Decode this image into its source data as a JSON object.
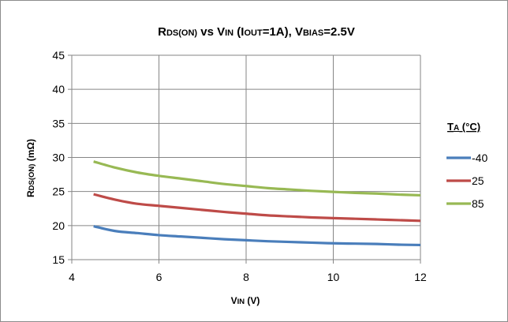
{
  "chart_data": {
    "type": "line",
    "title": {
      "main": "R",
      "sub": "DS(ON)",
      "mid": " vs V",
      "sub2": "IN",
      "open": " (I",
      "sub3": "OUT",
      "close": "=1A), V",
      "sub4": "BIAS",
      "end": "=2.5V"
    },
    "xlabel": {
      "main": "V",
      "sub": "IN",
      "end": " (V)"
    },
    "ylabel": {
      "main": "R",
      "sub": "DS(ON)",
      "end": " (mΩ)"
    },
    "xlim": [
      4,
      12
    ],
    "ylim": [
      15,
      45
    ],
    "x_ticks": [
      4,
      6,
      8,
      10,
      12
    ],
    "y_ticks": [
      15,
      20,
      25,
      30,
      35,
      40,
      45
    ],
    "grid": true,
    "legend": {
      "title_main": "T",
      "title_sub": "A",
      "title_end": " (°C)",
      "placement": "right"
    },
    "series": [
      {
        "name": "-40",
        "color": "#4a7ebb",
        "x": [
          4.5,
          5,
          5.5,
          6,
          6.5,
          7,
          7.5,
          8,
          8.5,
          9,
          9.5,
          10,
          10.5,
          11,
          11.5,
          12
        ],
        "y": [
          19.9,
          19.2,
          18.9,
          18.6,
          18.4,
          18.2,
          18.0,
          17.85,
          17.7,
          17.6,
          17.5,
          17.4,
          17.35,
          17.3,
          17.2,
          17.15
        ]
      },
      {
        "name": "25",
        "color": "#be4b48",
        "x": [
          4.5,
          5,
          5.5,
          6,
          6.5,
          7,
          7.5,
          8,
          8.5,
          9,
          9.5,
          10,
          10.5,
          11,
          11.5,
          12
        ],
        "y": [
          24.6,
          23.8,
          23.2,
          22.9,
          22.6,
          22.3,
          22.0,
          21.75,
          21.5,
          21.35,
          21.2,
          21.1,
          21.0,
          20.9,
          20.8,
          20.7
        ]
      },
      {
        "name": "85",
        "color": "#98b954",
        "x": [
          4.5,
          5,
          5.5,
          6,
          6.5,
          7,
          7.5,
          8,
          8.5,
          9,
          9.5,
          10,
          10.5,
          11,
          11.5,
          12
        ],
        "y": [
          29.4,
          28.5,
          27.8,
          27.3,
          26.9,
          26.5,
          26.1,
          25.8,
          25.5,
          25.3,
          25.1,
          24.95,
          24.8,
          24.7,
          24.55,
          24.45
        ]
      }
    ]
  }
}
